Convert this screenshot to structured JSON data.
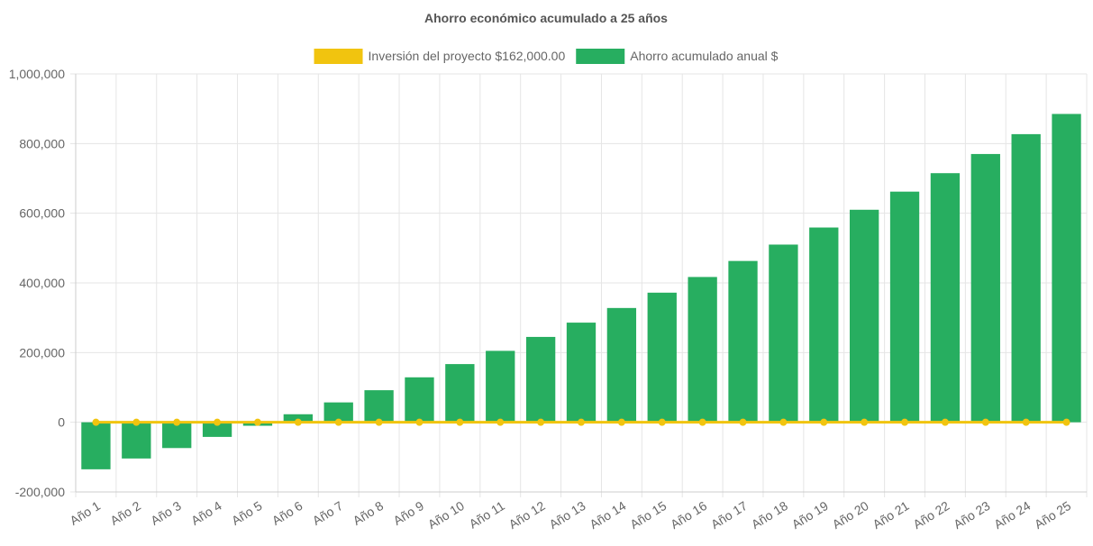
{
  "chart_data": {
    "type": "bar",
    "title": "Ahorro económico acumulado a 25 años",
    "categories": [
      "Año 1",
      "Año 2",
      "Año 3",
      "Año 4",
      "Año 5",
      "Año 6",
      "Año 7",
      "Año 8",
      "Año 9",
      "Año 10",
      "Año 11",
      "Año 12",
      "Año 13",
      "Año 14",
      "Año 15",
      "Año 16",
      "Año 17",
      "Año 18",
      "Año 19",
      "Año 20",
      "Año 21",
      "Año 22",
      "Año 23",
      "Año 24",
      "Año 25"
    ],
    "series": [
      {
        "name": "Ahorro acumulado anual $",
        "type": "bar",
        "color": "#27ae60",
        "values": [
          -135000,
          -104000,
          -74000,
          -42000,
          -10000,
          23000,
          57000,
          92000,
          129000,
          167000,
          205000,
          245000,
          286000,
          328000,
          372000,
          417000,
          463000,
          510000,
          559000,
          610000,
          662000,
          715000,
          770000,
          827000,
          885000
        ]
      },
      {
        "name": "Inversión del proyecto $162,000.00",
        "type": "line",
        "color": "#f1c40f",
        "values": [
          0,
          0,
          0,
          0,
          0,
          0,
          0,
          0,
          0,
          0,
          0,
          0,
          0,
          0,
          0,
          0,
          0,
          0,
          0,
          0,
          0,
          0,
          0,
          0,
          0
        ]
      }
    ],
    "legend_order": [
      1,
      0
    ],
    "legend_position": "top",
    "ylim": [
      -200000,
      1000000
    ],
    "y_ticks": [
      1000000,
      800000,
      600000,
      400000,
      200000,
      0,
      -200000
    ],
    "y_tick_labels": [
      "1,000,000",
      "800,000",
      "600,000",
      "400,000",
      "200,000",
      "0",
      "-200,000"
    ],
    "grid": true,
    "xlabel": "",
    "ylabel": ""
  }
}
